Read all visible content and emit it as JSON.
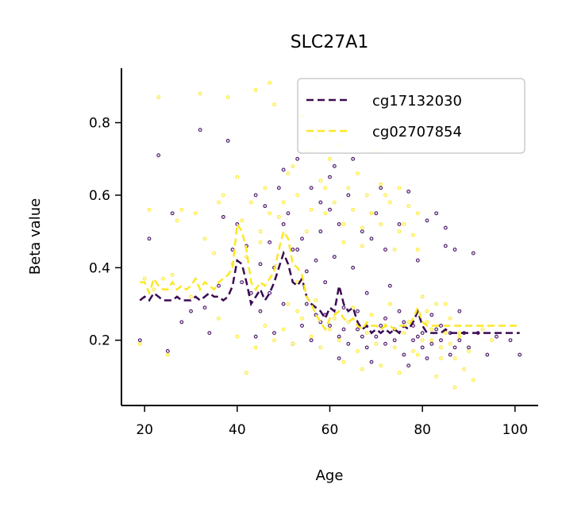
{
  "chart_data": {
    "type": "scatter",
    "title": "SLC27A1",
    "xlabel": "Age",
    "ylabel": "Beta value",
    "xlim": [
      15,
      105
    ],
    "ylim": [
      0.02,
      0.95
    ],
    "xticks": [
      20,
      40,
      60,
      80,
      100
    ],
    "yticks": [
      0.2,
      0.4,
      0.6,
      0.8
    ],
    "xtick_labels": [
      "20",
      "40",
      "60",
      "80",
      "100"
    ],
    "ytick_labels": [
      "0.2",
      "0.4",
      "0.6",
      "0.8"
    ],
    "grid": false,
    "legend_position": "top-right",
    "series": [
      {
        "name": "cg17132030",
        "color": "#3b0a52",
        "line_x": [
          19,
          20,
          21,
          22,
          23,
          24,
          25,
          26,
          27,
          28,
          29,
          30,
          31,
          32,
          33,
          34,
          35,
          36,
          37,
          38,
          39,
          40,
          41,
          42,
          43,
          44,
          45,
          46,
          47,
          48,
          49,
          50,
          51,
          52,
          53,
          54,
          55,
          56,
          57,
          58,
          59,
          60,
          61,
          62,
          63,
          64,
          65,
          66,
          67,
          68,
          69,
          70,
          71,
          72,
          73,
          74,
          75,
          76,
          77,
          78,
          79,
          80,
          81,
          82,
          83,
          84,
          85,
          86,
          87,
          88,
          89,
          90,
          91,
          92,
          93,
          94,
          95,
          96,
          97,
          98,
          99,
          100,
          101
        ],
        "line_y": [
          0.31,
          0.32,
          0.31,
          0.33,
          0.32,
          0.31,
          0.31,
          0.31,
          0.32,
          0.31,
          0.31,
          0.31,
          0.32,
          0.31,
          0.32,
          0.33,
          0.32,
          0.32,
          0.31,
          0.32,
          0.35,
          0.42,
          0.41,
          0.36,
          0.3,
          0.32,
          0.34,
          0.31,
          0.33,
          0.36,
          0.4,
          0.44,
          0.41,
          0.36,
          0.35,
          0.37,
          0.32,
          0.3,
          0.29,
          0.28,
          0.26,
          0.29,
          0.28,
          0.35,
          0.3,
          0.28,
          0.29,
          0.25,
          0.23,
          0.24,
          0.22,
          0.23,
          0.22,
          0.23,
          0.22,
          0.23,
          0.22,
          0.24,
          0.23,
          0.25,
          0.28,
          0.24,
          0.22,
          0.22,
          0.22,
          0.22,
          0.23,
          0.22,
          0.22,
          0.22,
          0.22,
          0.22,
          0.22,
          0.22,
          0.22,
          0.22,
          0.22,
          0.22,
          0.22,
          0.22,
          0.22,
          0.22,
          0.22
        ],
        "scatter": [
          [
            19,
            0.2
          ],
          [
            21,
            0.48
          ],
          [
            23,
            0.71
          ],
          [
            25,
            0.17
          ],
          [
            26,
            0.55
          ],
          [
            28,
            0.25
          ],
          [
            30,
            0.28
          ],
          [
            32,
            0.78
          ],
          [
            33,
            0.29
          ],
          [
            34,
            0.22
          ],
          [
            36,
            0.35
          ],
          [
            37,
            0.54
          ],
          [
            38,
            0.75
          ],
          [
            39,
            0.45
          ],
          [
            40,
            0.52
          ],
          [
            41,
            0.36
          ],
          [
            42,
            0.46
          ],
          [
            43,
            0.33
          ],
          [
            44,
            0.6
          ],
          [
            45,
            0.28
          ],
          [
            46,
            0.57
          ],
          [
            47,
            0.47
          ],
          [
            48,
            0.4
          ],
          [
            49,
            0.62
          ],
          [
            50,
            0.3
          ],
          [
            50,
            0.52
          ],
          [
            51,
            0.55
          ],
          [
            52,
            0.45
          ],
          [
            53,
            0.7
          ],
          [
            54,
            0.48
          ],
          [
            55,
            0.39
          ],
          [
            56,
            0.62
          ],
          [
            57,
            0.42
          ],
          [
            57,
            0.27
          ],
          [
            58,
            0.5
          ],
          [
            59,
            0.36
          ],
          [
            60,
            0.56
          ],
          [
            61,
            0.43
          ],
          [
            61,
            0.68
          ],
          [
            62,
            0.52
          ],
          [
            63,
            0.29
          ],
          [
            64,
            0.6
          ],
          [
            65,
            0.4
          ],
          [
            66,
            0.23
          ],
          [
            67,
            0.5
          ],
          [
            68,
            0.33
          ],
          [
            69,
            0.48
          ],
          [
            70,
            0.21
          ],
          [
            70,
            0.55
          ],
          [
            71,
            0.62
          ],
          [
            72,
            0.19
          ],
          [
            73,
            0.35
          ],
          [
            74,
            0.23
          ],
          [
            75,
            0.52
          ],
          [
            76,
            0.16
          ],
          [
            77,
            0.61
          ],
          [
            78,
            0.24
          ],
          [
            79,
            0.42
          ],
          [
            80,
            0.18
          ],
          [
            81,
            0.53
          ],
          [
            82,
            0.27
          ],
          [
            83,
            0.55
          ],
          [
            84,
            0.2
          ],
          [
            85,
            0.46
          ],
          [
            86,
            0.16
          ],
          [
            87,
            0.45
          ],
          [
            88,
            0.28
          ],
          [
            89,
            0.22
          ],
          [
            90,
            0.18
          ],
          [
            91,
            0.44
          ],
          [
            92,
            0.22
          ],
          [
            94,
            0.16
          ],
          [
            96,
            0.21
          ],
          [
            99,
            0.2
          ],
          [
            101,
            0.16
          ],
          [
            44,
            0.21
          ],
          [
            48,
            0.22
          ],
          [
            52,
            0.19
          ],
          [
            54,
            0.24
          ],
          [
            56,
            0.2
          ],
          [
            58,
            0.25
          ],
          [
            60,
            0.24
          ],
          [
            62,
            0.21
          ],
          [
            64,
            0.19
          ],
          [
            66,
            0.28
          ],
          [
            68,
            0.18
          ],
          [
            72,
            0.26
          ],
          [
            74,
            0.2
          ],
          [
            76,
            0.25
          ],
          [
            78,
            0.2
          ],
          [
            80,
            0.22
          ],
          [
            82,
            0.19
          ],
          [
            84,
            0.24
          ],
          [
            86,
            0.22
          ],
          [
            88,
            0.2
          ],
          [
            55,
            0.3
          ],
          [
            59,
            0.27
          ],
          [
            63,
            0.23
          ],
          [
            67,
            0.21
          ],
          [
            71,
            0.24
          ],
          [
            75,
            0.28
          ],
          [
            79,
            0.21
          ],
          [
            83,
            0.23
          ],
          [
            47,
            0.33
          ],
          [
            45,
            0.41
          ],
          [
            53,
            0.45
          ],
          [
            60,
            0.65
          ],
          [
            65,
            0.7
          ],
          [
            50,
            0.67
          ],
          [
            58,
            0.58
          ],
          [
            72,
            0.45
          ],
          [
            85,
            0.51
          ],
          [
            62,
            0.15
          ],
          [
            69,
            0.14
          ],
          [
            77,
            0.13
          ],
          [
            81,
            0.15
          ],
          [
            87,
            0.18
          ]
        ]
      },
      {
        "name": "cg02707854",
        "color": "#fde725",
        "line_x": [
          19,
          20,
          21,
          22,
          23,
          24,
          25,
          26,
          27,
          28,
          29,
          30,
          31,
          32,
          33,
          34,
          35,
          36,
          37,
          38,
          39,
          40,
          41,
          42,
          43,
          44,
          45,
          46,
          47,
          48,
          49,
          50,
          51,
          52,
          53,
          54,
          55,
          56,
          57,
          58,
          59,
          60,
          61,
          62,
          63,
          64,
          65,
          66,
          67,
          68,
          69,
          70,
          71,
          72,
          73,
          74,
          75,
          76,
          77,
          78,
          79,
          80,
          81,
          82,
          83,
          84,
          85,
          86,
          87,
          88,
          89,
          90,
          91,
          92,
          93,
          94,
          95,
          96,
          97,
          98,
          99,
          100,
          101
        ],
        "line_y": [
          0.36,
          0.36,
          0.33,
          0.37,
          0.35,
          0.34,
          0.34,
          0.36,
          0.34,
          0.35,
          0.34,
          0.35,
          0.37,
          0.34,
          0.36,
          0.35,
          0.34,
          0.36,
          0.37,
          0.38,
          0.4,
          0.52,
          0.5,
          0.45,
          0.36,
          0.34,
          0.36,
          0.35,
          0.37,
          0.39,
          0.45,
          0.5,
          0.48,
          0.41,
          0.4,
          0.38,
          0.32,
          0.3,
          0.27,
          0.25,
          0.23,
          0.26,
          0.27,
          0.28,
          0.26,
          0.25,
          0.26,
          0.24,
          0.23,
          0.25,
          0.24,
          0.24,
          0.23,
          0.24,
          0.24,
          0.23,
          0.24,
          0.24,
          0.24,
          0.26,
          0.29,
          0.25,
          0.24,
          0.24,
          0.24,
          0.24,
          0.24,
          0.24,
          0.24,
          0.24,
          0.24,
          0.24,
          0.24,
          0.24,
          0.24,
          0.24,
          0.24,
          0.24,
          0.24,
          0.24,
          0.24,
          0.24,
          0.24
        ],
        "scatter": [
          [
            19,
            0.19
          ],
          [
            20,
            0.37
          ],
          [
            21,
            0.56
          ],
          [
            22,
            0.34
          ],
          [
            23,
            0.87
          ],
          [
            24,
            0.37
          ],
          [
            25,
            0.16
          ],
          [
            26,
            0.38
          ],
          [
            27,
            0.53
          ],
          [
            28,
            0.56
          ],
          [
            30,
            0.32
          ],
          [
            31,
            0.55
          ],
          [
            32,
            0.88
          ],
          [
            33,
            0.48
          ],
          [
            35,
            0.44
          ],
          [
            36,
            0.58
          ],
          [
            37,
            0.6
          ],
          [
            38,
            0.87
          ],
          [
            39,
            0.41
          ],
          [
            40,
            0.65
          ],
          [
            41,
            0.53
          ],
          [
            42,
            0.43
          ],
          [
            43,
            0.58
          ],
          [
            44,
            0.89
          ],
          [
            45,
            0.5
          ],
          [
            46,
            0.62
          ],
          [
            47,
            0.91
          ],
          [
            48,
            0.85
          ],
          [
            49,
            0.54
          ],
          [
            50,
            0.58
          ],
          [
            51,
            0.66
          ],
          [
            52,
            0.68
          ],
          [
            53,
            0.6
          ],
          [
            54,
            0.82
          ],
          [
            55,
            0.72
          ],
          [
            56,
            0.56
          ],
          [
            57,
            0.76
          ],
          [
            58,
            0.64
          ],
          [
            59,
            0.55
          ],
          [
            60,
            0.7
          ],
          [
            61,
            0.58
          ],
          [
            62,
            0.74
          ],
          [
            63,
            0.52
          ],
          [
            64,
            0.62
          ],
          [
            65,
            0.56
          ],
          [
            66,
            0.66
          ],
          [
            67,
            0.46
          ],
          [
            68,
            0.6
          ],
          [
            69,
            0.55
          ],
          [
            70,
            0.72
          ],
          [
            71,
            0.52
          ],
          [
            72,
            0.6
          ],
          [
            73,
            0.58
          ],
          [
            74,
            0.45
          ],
          [
            75,
            0.62
          ],
          [
            76,
            0.52
          ],
          [
            77,
            0.57
          ],
          [
            78,
            0.49
          ],
          [
            79,
            0.45
          ],
          [
            80,
            0.32
          ],
          [
            81,
            0.25
          ],
          [
            82,
            0.2
          ],
          [
            83,
            0.3
          ],
          [
            84,
            0.18
          ],
          [
            85,
            0.22
          ],
          [
            86,
            0.26
          ],
          [
            87,
            0.15
          ],
          [
            88,
            0.22
          ],
          [
            89,
            0.12
          ],
          [
            90,
            0.17
          ],
          [
            91,
            0.09
          ],
          [
            93,
            0.23
          ],
          [
            95,
            0.2
          ],
          [
            36,
            0.26
          ],
          [
            40,
            0.21
          ],
          [
            42,
            0.11
          ],
          [
            44,
            0.18
          ],
          [
            46,
            0.24
          ],
          [
            48,
            0.2
          ],
          [
            50,
            0.23
          ],
          [
            52,
            0.19
          ],
          [
            54,
            0.26
          ],
          [
            56,
            0.21
          ],
          [
            58,
            0.18
          ],
          [
            60,
            0.23
          ],
          [
            62,
            0.2
          ],
          [
            64,
            0.25
          ],
          [
            66,
            0.17
          ],
          [
            68,
            0.22
          ],
          [
            70,
            0.19
          ],
          [
            72,
            0.24
          ],
          [
            74,
            0.18
          ],
          [
            76,
            0.22
          ],
          [
            78,
            0.17
          ],
          [
            80,
            0.2
          ],
          [
            82,
            0.23
          ],
          [
            84,
            0.15
          ],
          [
            86,
            0.19
          ],
          [
            88,
            0.21
          ],
          [
            53,
            0.28
          ],
          [
            57,
            0.31
          ],
          [
            61,
            0.26
          ],
          [
            65,
            0.29
          ],
          [
            69,
            0.27
          ],
          [
            73,
            0.3
          ],
          [
            77,
            0.25
          ],
          [
            81,
            0.28
          ],
          [
            85,
            0.3
          ],
          [
            63,
            0.14
          ],
          [
            67,
            0.12
          ],
          [
            71,
            0.13
          ],
          [
            75,
            0.11
          ],
          [
            79,
            0.16
          ],
          [
            83,
            0.1
          ],
          [
            87,
            0.07
          ],
          [
            47,
            0.55
          ],
          [
            55,
            0.5
          ],
          [
            59,
            0.62
          ],
          [
            63,
            0.47
          ],
          [
            67,
            0.51
          ],
          [
            71,
            0.63
          ],
          [
            75,
            0.5
          ],
          [
            79,
            0.55
          ],
          [
            45,
            0.47
          ],
          [
            51,
            0.3
          ],
          [
            53,
            0.36
          ]
        ]
      }
    ]
  }
}
